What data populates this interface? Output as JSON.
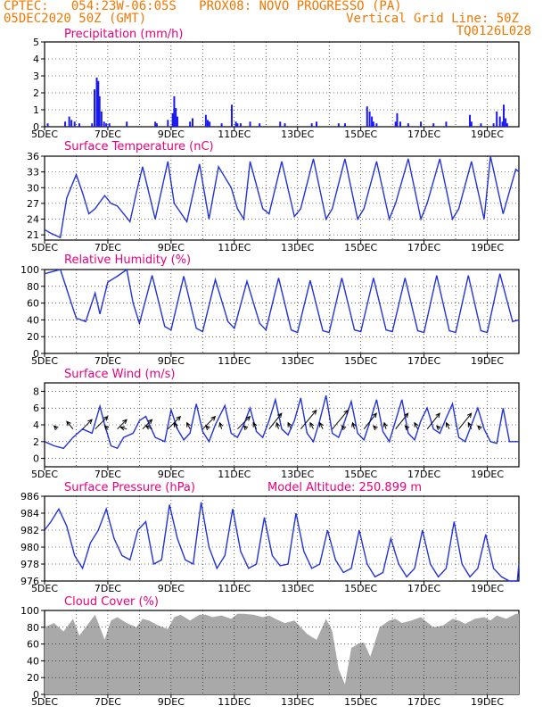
{
  "header": {
    "line1_left": "CPTEC:   054:23W-06:05S   PROX08: NOVO PROGRESSO (PA)",
    "line2_left": "05DEC2020 50Z (GMT)",
    "line2_right": "Vertical Grid Line: 50Z",
    "line3_right": "TQ0126L028",
    "model_altitude": "Model Altitude: 250.899 m"
  },
  "colors": {
    "header": "#f07800",
    "title": "#e8007c",
    "line": "#2233dd",
    "bar": "#1a1aee",
    "cloud": "#a9a9a9",
    "axis": "#000000"
  },
  "x_axis": {
    "tick_labels": [
      "5DEC",
      "7DEC",
      "9DEC",
      "11DEC",
      "13DEC",
      "15DEC",
      "17DEC",
      "19DEC"
    ],
    "tick_days": [
      5,
      7,
      9,
      11,
      13,
      15,
      17,
      19
    ],
    "range_days": [
      5,
      20
    ]
  },
  "chart_data": [
    {
      "type": "bar",
      "panel": "precip",
      "title": "Precipitation  (mm/h)",
      "ylim": [
        0,
        5
      ],
      "yticks": [
        0,
        1,
        2,
        3,
        4,
        5
      ],
      "grid": true,
      "x_day": [
        5.1,
        5.65,
        5.78,
        5.85,
        5.95,
        6.1,
        6.5,
        6.58,
        6.65,
        6.7,
        6.74,
        6.8,
        6.88,
        6.95,
        7.05,
        7.6,
        8.5,
        8.55,
        8.9,
        9.05,
        9.1,
        9.15,
        9.2,
        9.6,
        9.68,
        10.1,
        10.16,
        10.22,
        10.6,
        10.92,
        11.05,
        11.1,
        11.2,
        11.5,
        11.8,
        12.45,
        12.6,
        13.45,
        13.6,
        14.3,
        14.5,
        15.2,
        15.28,
        15.35,
        15.4,
        15.5,
        16.1,
        16.15,
        16.25,
        16.5,
        16.9,
        17.3,
        17.7,
        18.45,
        18.5,
        18.8,
        19.2,
        19.3,
        19.4,
        19.48,
        19.52,
        19.58,
        19.63
      ],
      "values": [
        0.2,
        0.3,
        0.6,
        0.4,
        0.3,
        0.2,
        0.2,
        2.2,
        2.9,
        2.7,
        1.8,
        0.9,
        0.3,
        0.2,
        0.2,
        0.3,
        0.3,
        0.2,
        0.4,
        0.8,
        1.8,
        1.1,
        0.6,
        0.3,
        0.5,
        0.7,
        0.4,
        0.3,
        0.2,
        1.3,
        0.3,
        0.2,
        0.2,
        0.3,
        0.2,
        0.3,
        0.2,
        0.2,
        0.3,
        0.2,
        0.2,
        1.2,
        0.9,
        0.6,
        0.3,
        0.2,
        0.3,
        0.8,
        0.3,
        0.2,
        0.3,
        0.2,
        0.3,
        0.7,
        0.3,
        0.2,
        0.2,
        0.9,
        0.6,
        0.3,
        1.3,
        0.5,
        0.2
      ]
    },
    {
      "type": "line",
      "panel": "temp",
      "title": "Surface Temperature (nC)",
      "ylim": [
        20,
        36
      ],
      "yticks": [
        21,
        24,
        27,
        30,
        33,
        36
      ],
      "grid": true,
      "series": [
        {
          "x": [
            5.0,
            5.2,
            5.5,
            5.7,
            6.0,
            6.2,
            6.4,
            6.6,
            6.9,
            7.1,
            7.3,
            7.5,
            7.7,
            7.9,
            8.1,
            8.5,
            8.9,
            9.1,
            9.5,
            9.9,
            10.2,
            10.5,
            10.9,
            11.1,
            11.3,
            11.5,
            11.9,
            12.1,
            12.5,
            12.9,
            13.1,
            13.5,
            13.9,
            14.1,
            14.5,
            14.9,
            15.1,
            15.5,
            15.9,
            16.1,
            16.5,
            16.9,
            17.1,
            17.5,
            17.9,
            18.1,
            18.5,
            18.9,
            19.1,
            19.5,
            19.9,
            20.0
          ],
          "values": [
            22.0,
            21.3,
            20.5,
            28.0,
            32.5,
            29.0,
            25.0,
            26.0,
            28.5,
            27.0,
            26.5,
            25.0,
            23.5,
            29.0,
            34.0,
            24.0,
            35.0,
            27.0,
            23.5,
            34.5,
            24.0,
            34.0,
            30.0,
            26.0,
            24.0,
            35.0,
            26.0,
            25.0,
            35.0,
            24.5,
            26.0,
            35.5,
            24.0,
            26.0,
            35.5,
            24.0,
            26.0,
            35.0,
            24.0,
            27.0,
            35.5,
            24.0,
            27.0,
            35.5,
            24.0,
            26.0,
            35.0,
            24.0,
            36.0,
            25.0,
            33.5,
            33.0
          ]
        }
      ]
    },
    {
      "type": "line",
      "panel": "rh",
      "title": "Relative Humidity (%)",
      "ylim": [
        0,
        100
      ],
      "yticks": [
        0,
        20,
        40,
        60,
        80,
        100
      ],
      "grid": true,
      "series": [
        {
          "x": [
            5.0,
            5.2,
            5.5,
            5.8,
            6.0,
            6.3,
            6.6,
            6.75,
            7.0,
            7.3,
            7.6,
            7.8,
            8.0,
            8.4,
            8.8,
            9.0,
            9.4,
            9.8,
            10.0,
            10.4,
            10.8,
            11.0,
            11.4,
            11.8,
            12.0,
            12.4,
            12.8,
            13.0,
            13.4,
            13.8,
            14.0,
            14.4,
            14.8,
            15.0,
            15.4,
            15.8,
            16.0,
            16.4,
            16.8,
            17.0,
            17.4,
            17.8,
            18.0,
            18.4,
            18.8,
            19.0,
            19.4,
            19.8,
            20.0
          ],
          "values": [
            95,
            97,
            100,
            65,
            42,
            38,
            72,
            47,
            85,
            92,
            100,
            60,
            36,
            93,
            32,
            28,
            92,
            30,
            26,
            88,
            38,
            30,
            86,
            36,
            28,
            90,
            28,
            25,
            87,
            27,
            25,
            90,
            28,
            26,
            90,
            28,
            26,
            90,
            27,
            25,
            93,
            27,
            25,
            93,
            27,
            25,
            95,
            38,
            40
          ]
        }
      ]
    },
    {
      "type": "line",
      "panel": "wind",
      "title": "Surface Wind (m/s)",
      "ylim": [
        -1,
        9
      ],
      "yticks": [
        0,
        2,
        4,
        6,
        8
      ],
      "grid": true,
      "series": [
        {
          "x": [
            5.0,
            5.3,
            5.6,
            5.9,
            6.2,
            6.5,
            6.75,
            6.9,
            7.1,
            7.3,
            7.5,
            7.8,
            8.0,
            8.2,
            8.5,
            8.8,
            9.0,
            9.2,
            9.4,
            9.6,
            9.8,
            10.0,
            10.2,
            10.4,
            10.7,
            10.9,
            11.1,
            11.3,
            11.5,
            11.7,
            11.9,
            12.1,
            12.3,
            12.5,
            12.7,
            12.9,
            13.1,
            13.3,
            13.5,
            13.7,
            13.9,
            14.1,
            14.3,
            14.5,
            14.7,
            14.9,
            15.1,
            15.3,
            15.5,
            15.7,
            15.9,
            16.1,
            16.3,
            16.5,
            16.7,
            16.9,
            17.1,
            17.3,
            17.5,
            17.7,
            17.9,
            18.1,
            18.3,
            18.5,
            18.7,
            18.9,
            19.1,
            19.3,
            19.5,
            19.7,
            20.0
          ],
          "values": [
            2,
            1.5,
            1.2,
            2.5,
            3.5,
            3.0,
            6.2,
            4.0,
            1.5,
            1.2,
            2.5,
            3.0,
            4.5,
            5.0,
            2.5,
            2.0,
            5.8,
            3.5,
            2.2,
            3.0,
            6.5,
            3.2,
            2.0,
            4.0,
            6.3,
            3.0,
            2.5,
            4.0,
            6.0,
            3.2,
            2.5,
            4.5,
            7.0,
            3.5,
            2.8,
            4.5,
            7.2,
            3.0,
            2.0,
            4.5,
            7.5,
            3.0,
            2.5,
            4.5,
            6.8,
            3.0,
            2.2,
            4.5,
            7.0,
            3.2,
            2.0,
            4.5,
            7.0,
            3.0,
            2.2,
            4.5,
            6.0,
            3.5,
            3.0,
            4.8,
            6.5,
            2.5,
            2.0,
            4.0,
            6.0,
            3.5,
            2.0,
            1.8,
            6.0,
            2.0,
            2.0
          ]
        }
      ],
      "arrows": {
        "x": [
          5.4,
          5.9,
          6.2,
          6.6,
          7.0,
          7.3,
          7.6,
          8.1,
          8.4,
          8.9,
          9.2,
          9.6,
          10.0,
          10.2,
          10.6,
          11.1,
          11.4,
          11.7,
          12.1,
          12.4,
          12.8,
          13.1,
          13.5,
          13.8,
          14.1,
          14.5,
          14.8,
          15.1,
          15.5,
          15.8,
          16.1,
          16.5,
          16.8,
          17.1,
          17.5,
          17.8,
          18.1,
          18.5,
          18.8
        ],
        "u": [
          -0.5,
          -1.0,
          1.5,
          2.0,
          -0.5,
          1.5,
          -1.0,
          1.5,
          -1.0,
          2.0,
          -0.5,
          -0.5,
          2.0,
          -0.5,
          -0.3,
          2.0,
          -0.5,
          -0.5,
          2.0,
          -0.3,
          -0.5,
          2.5,
          -0.5,
          -0.5,
          2.5,
          -0.5,
          -0.3,
          2.0,
          -0.5,
          -0.3,
          2.0,
          -0.5,
          -0.5,
          2.0,
          -0.5,
          -0.5,
          2.0,
          -0.5,
          -0.5
        ],
        "v": [
          0.5,
          1.2,
          1.5,
          2.0,
          0.5,
          1.5,
          0.3,
          1.5,
          0.5,
          2.0,
          1.0,
          1.0,
          2.0,
          0.5,
          1.0,
          2.0,
          0.5,
          1.0,
          2.5,
          1.0,
          1.0,
          3.0,
          1.0,
          1.0,
          3.0,
          0.5,
          1.0,
          2.5,
          0.5,
          1.0,
          2.5,
          0.5,
          1.0,
          2.5,
          0.5,
          1.0,
          2.5,
          1.0,
          0.5
        ]
      }
    },
    {
      "type": "line",
      "panel": "pressure",
      "title": "Surface Pressure (hPa)",
      "ylim": [
        976,
        986
      ],
      "yticks": [
        976,
        978,
        980,
        982,
        984,
        986
      ],
      "grid": true,
      "series": [
        {
          "x": [
            5.0,
            5.2,
            5.45,
            5.7,
            5.95,
            6.2,
            6.45,
            6.7,
            6.95,
            7.2,
            7.45,
            7.7,
            7.95,
            8.2,
            8.45,
            8.7,
            8.95,
            9.2,
            9.45,
            9.7,
            9.95,
            10.2,
            10.45,
            10.7,
            10.95,
            11.2,
            11.45,
            11.7,
            11.95,
            12.2,
            12.45,
            12.7,
            12.95,
            13.2,
            13.45,
            13.7,
            13.95,
            14.2,
            14.45,
            14.7,
            14.95,
            15.2,
            15.45,
            15.7,
            15.95,
            16.2,
            16.45,
            16.7,
            16.95,
            17.2,
            17.45,
            17.7,
            17.95,
            18.2,
            18.45,
            18.7,
            18.95,
            19.2,
            19.45,
            19.7,
            19.95,
            20.0
          ],
          "values": [
            982,
            983,
            984.5,
            982.5,
            979,
            977.5,
            980.5,
            982,
            984.5,
            981,
            979,
            978.5,
            982,
            983,
            978,
            978.5,
            985,
            981,
            978.5,
            978,
            985.3,
            980,
            977.5,
            979,
            984.5,
            979.5,
            977.5,
            978,
            983.5,
            979,
            977.8,
            978,
            984,
            979.5,
            977.5,
            978,
            982,
            978.5,
            977,
            977.5,
            982,
            978,
            976.5,
            977,
            981,
            978,
            976.5,
            977.5,
            982,
            978,
            976.5,
            977.5,
            983,
            978,
            976.5,
            977.5,
            981.5,
            977.5,
            976.5,
            976,
            976,
            978
          ]
        }
      ]
    },
    {
      "type": "area",
      "panel": "cloud",
      "title": "Cloud Cover (%)",
      "ylim": [
        0,
        100
      ],
      "yticks": [
        0,
        20,
        40,
        60,
        80,
        100
      ],
      "grid": true,
      "x": [
        5.0,
        5.3,
        5.6,
        5.9,
        6.1,
        6.3,
        6.6,
        6.9,
        7.1,
        7.3,
        7.6,
        7.9,
        8.1,
        8.3,
        8.6,
        8.9,
        9.1,
        9.3,
        9.6,
        9.9,
        10.1,
        10.3,
        10.6,
        10.9,
        11.1,
        11.3,
        11.6,
        11.9,
        12.1,
        12.3,
        12.6,
        12.9,
        13.1,
        13.3,
        13.6,
        13.9,
        14.1,
        14.3,
        14.5,
        14.7,
        14.9,
        15.1,
        15.3,
        15.6,
        15.9,
        16.1,
        16.3,
        16.6,
        16.9,
        17.1,
        17.3,
        17.6,
        17.9,
        18.1,
        18.3,
        18.6,
        18.9,
        19.1,
        19.3,
        19.6,
        19.9,
        20.0
      ],
      "values": [
        80,
        85,
        75,
        90,
        70,
        80,
        95,
        65,
        88,
        92,
        85,
        80,
        90,
        88,
        82,
        78,
        92,
        95,
        88,
        95,
        95,
        92,
        94,
        90,
        96,
        96,
        95,
        92,
        94,
        90,
        85,
        88,
        80,
        72,
        65,
        90,
        75,
        30,
        12,
        55,
        60,
        62,
        45,
        80,
        88,
        90,
        85,
        88,
        92,
        86,
        80,
        82,
        90,
        88,
        84,
        90,
        92,
        88,
        94,
        90,
        96,
        96
      ]
    }
  ]
}
